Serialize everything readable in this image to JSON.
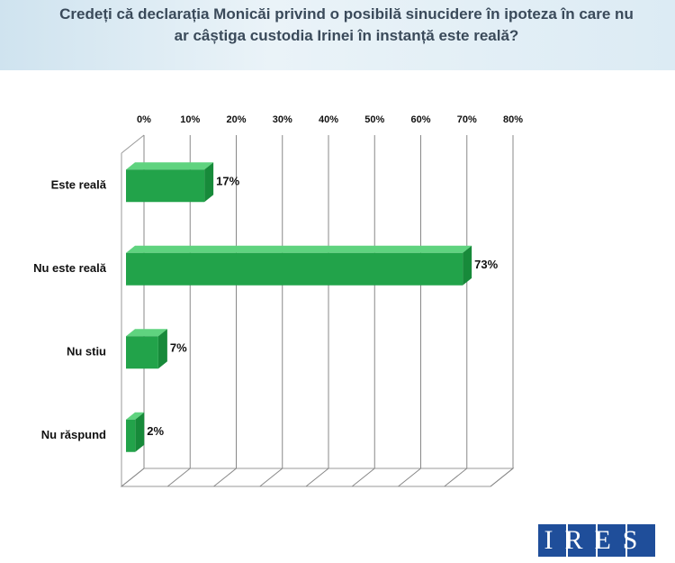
{
  "chart_data": {
    "type": "bar",
    "orientation": "horizontal",
    "title": "Credeți că declarația Monicăi privind o posibilă sinucidere în ipoteza în care nu ar câștiga custodia Irinei în instanță este reală?",
    "categories": [
      "Este reală",
      "Nu este reală",
      "Nu stiu",
      "Nu răspund"
    ],
    "values": [
      17,
      73,
      7,
      2
    ],
    "value_labels": [
      "17%",
      "73%",
      "7%",
      "2%"
    ],
    "color": "#22a34a",
    "xlim": [
      0,
      80
    ],
    "xticks": [
      {
        "value": 0,
        "label": "0%"
      },
      {
        "value": 10,
        "label": "10%"
      },
      {
        "value": 20,
        "label": "20%"
      },
      {
        "value": 30,
        "label": "30%"
      },
      {
        "value": 40,
        "label": "40%"
      },
      {
        "value": 50,
        "label": "50%"
      },
      {
        "value": 60,
        "label": "60%"
      },
      {
        "value": 70,
        "label": "70%"
      },
      {
        "value": 80,
        "label": "80%"
      }
    ],
    "grid": true
  },
  "logo": "IRES"
}
